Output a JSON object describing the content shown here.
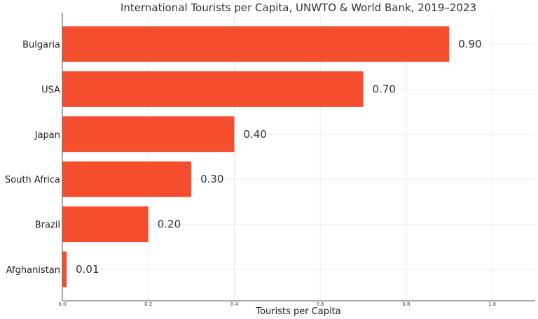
{
  "chart_data": {
    "type": "bar",
    "orientation": "horizontal",
    "title": "International Tourists per Capita, UNWTO & World Bank, 2019–2023",
    "xlabel": "Tourists per Capita",
    "ylabel": "",
    "categories": [
      "Bulgaria",
      "USA",
      "Japan",
      "South Africa",
      "Brazil",
      "Afghanistan"
    ],
    "values": [
      0.9,
      0.7,
      0.4,
      0.3,
      0.2,
      0.01
    ],
    "value_labels": [
      "0.90",
      "0.70",
      "0.40",
      "0.30",
      "0.20",
      "0.01"
    ],
    "xlim": [
      0,
      1.1
    ],
    "xticks": [
      0.0,
      0.2,
      0.4,
      0.6,
      0.8,
      1.0
    ],
    "xtick_labels": [
      "0.0",
      "0.2",
      "0.4",
      "0.6",
      "0.8",
      "1.0"
    ],
    "grid": true,
    "bar_color": "#f44e2f"
  }
}
